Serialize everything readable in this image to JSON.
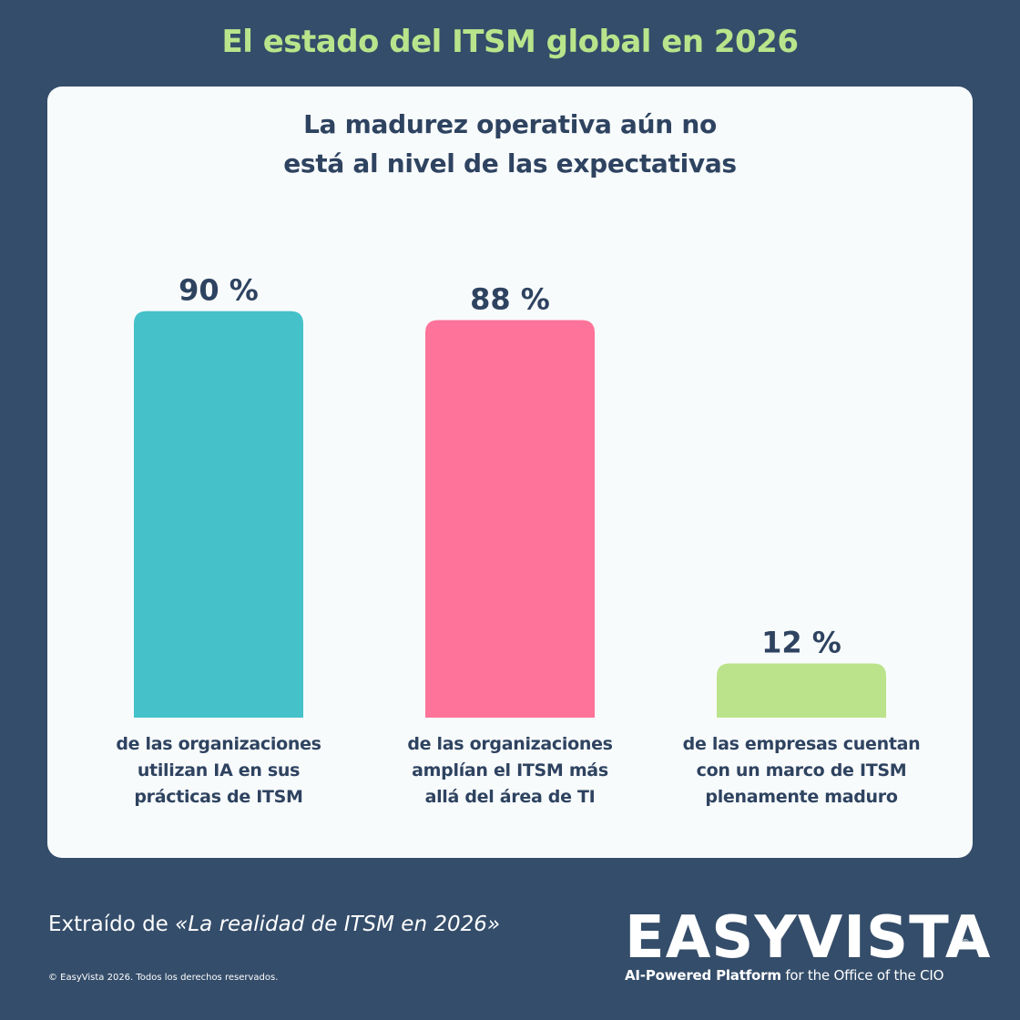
{
  "header": {
    "title": "El estado del ITSM global en 2026"
  },
  "chart_data": {
    "type": "bar",
    "title": [
      "La madurez operativa aún no",
      "está al nivel de las expectativas"
    ],
    "unit": "%",
    "ylim": [
      0,
      100
    ],
    "grid": false,
    "legend": "none",
    "categories": [
      [
        "de las organizaciones",
        "utilizan IA en sus",
        "prácticas de ITSM"
      ],
      [
        "de las organizaciones",
        "amplían el ITSM más",
        "allá del área de TI"
      ],
      [
        "de las empresas cuentan",
        "con un marco de ITSM",
        "plenamente maduro"
      ]
    ],
    "values": [
      90,
      88,
      12
    ],
    "value_labels": [
      "90 %",
      "88 %",
      "12 %"
    ],
    "colors": [
      "#44c1c9",
      "#fd7399",
      "#bbe38b"
    ]
  },
  "footer": {
    "source_prefix": "Extraído de ",
    "source_title": "«La realidad de ITSM en 2026»",
    "copyright": "© EasyVista 2026. Todos los derechos reservados."
  },
  "logo": {
    "wordmark": "EASYVISTA",
    "registered": "®",
    "tagline_bold": "AI-Powered Platform",
    "tagline_rest": " for the Office of the CIO"
  }
}
